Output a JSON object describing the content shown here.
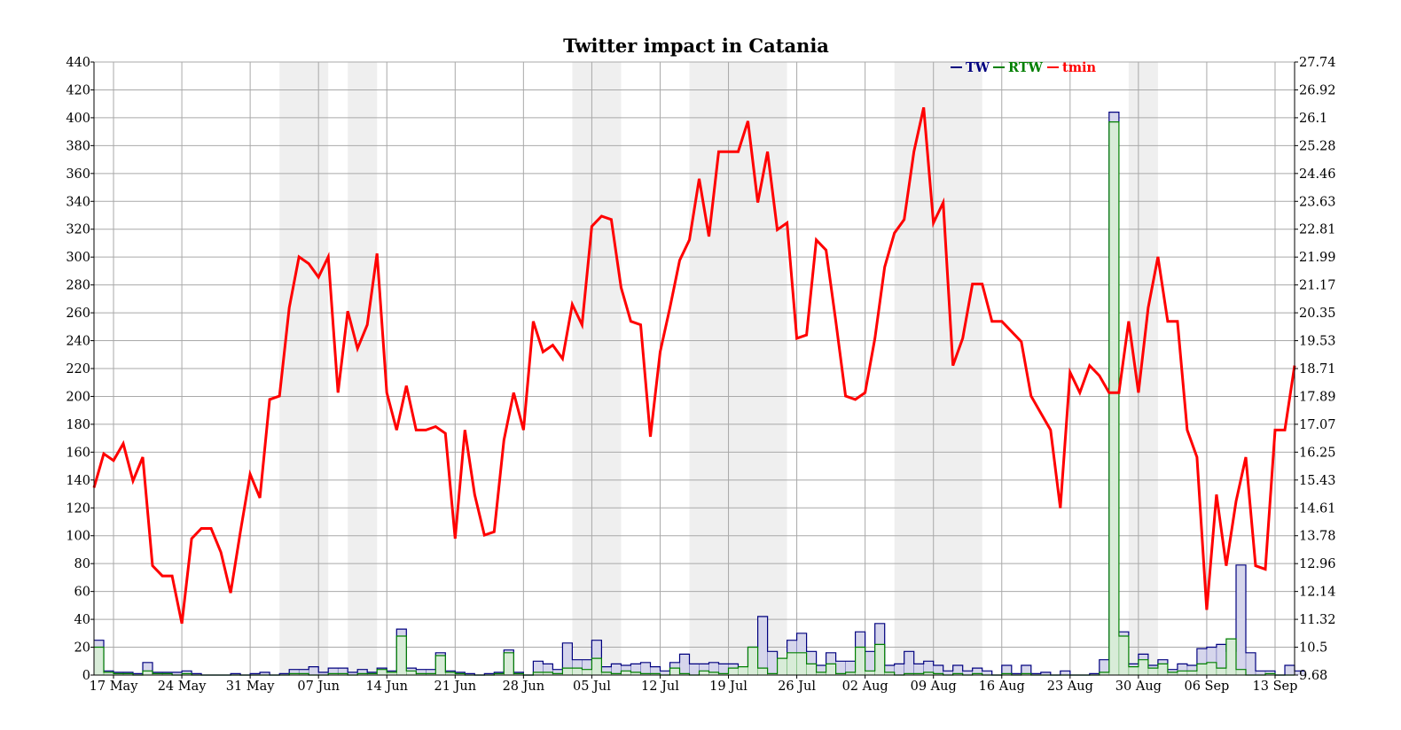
{
  "chart_data": {
    "type": "line",
    "title": "Twitter impact in Catania",
    "x_tick_labels": [
      "17 May",
      "24 May",
      "31 May",
      "07 Jun",
      "14 Jun",
      "21 Jun",
      "28 Jun",
      "05 Jul",
      "12 Jul",
      "19 Jul",
      "26 Jul",
      "02 Aug",
      "09 Aug",
      "16 Aug",
      "23 Aug",
      "30 Aug",
      "06 Sep",
      "13 Sep"
    ],
    "x_tick_day_index": [
      2,
      9,
      16,
      23,
      30,
      37,
      44,
      51,
      58,
      65,
      72,
      79,
      86,
      93,
      100,
      107,
      114,
      121
    ],
    "x_range_days": [
      0,
      123
    ],
    "left_axis": {
      "ylim": [
        0,
        440
      ],
      "ticks": [
        0,
        20,
        40,
        60,
        80,
        100,
        120,
        140,
        160,
        180,
        200,
        220,
        240,
        260,
        280,
        300,
        320,
        340,
        360,
        380,
        400,
        420,
        440
      ]
    },
    "right_axis": {
      "ylim": [
        9.68,
        27.74
      ],
      "ticks": [
        "9.68",
        "10.5",
        "11.32",
        "12.14",
        "12.96",
        "13.78",
        "14.61",
        "15.43",
        "16.25",
        "17.07",
        "17.89",
        "18.71",
        "19.53",
        "20.35",
        "21.17",
        "21.99",
        "22.81",
        "23.63",
        "24.46",
        "25.28",
        "26.1",
        "26.92",
        "27.74"
      ]
    },
    "grid": true,
    "legend": "top-center",
    "shaded_day_ranges": [
      [
        19,
        24
      ],
      [
        26,
        29
      ],
      [
        49,
        54
      ],
      [
        61,
        71
      ],
      [
        82,
        91
      ],
      [
        106,
        109
      ]
    ],
    "series": [
      {
        "name": "TW",
        "axis": "left",
        "style": "step-filled",
        "color": "#00007f",
        "fill": "#d6d6ec",
        "values": [
          25,
          3,
          2,
          2,
          1,
          9,
          2,
          2,
          2,
          3,
          1,
          0,
          0,
          0,
          1,
          0,
          1,
          2,
          0,
          1,
          4,
          4,
          6,
          2,
          5,
          5,
          2,
          4,
          2,
          5,
          3,
          33,
          5,
          4,
          4,
          16,
          3,
          2,
          1,
          0,
          1,
          2,
          18,
          2,
          0,
          10,
          8,
          4,
          23,
          11,
          11,
          25,
          6,
          8,
          7,
          8,
          9,
          6,
          3,
          9,
          15,
          8,
          8,
          9,
          8,
          8,
          4,
          20,
          42,
          17,
          11,
          25,
          30,
          17,
          7,
          16,
          10,
          10,
          31,
          17,
          37,
          7,
          8,
          17,
          8,
          10,
          7,
          3,
          7,
          3,
          5,
          3,
          0,
          7,
          1,
          7,
          1,
          2,
          0,
          3,
          0,
          0,
          1,
          11,
          404,
          31,
          8,
          15,
          7,
          11,
          4,
          8,
          7,
          19,
          20,
          22,
          17,
          79,
          16,
          3,
          3,
          0,
          7,
          3
        ]
      },
      {
        "name": "RTW",
        "axis": "left",
        "style": "step-filled",
        "color": "#007f00",
        "fill": "#d8ecd8",
        "values": [
          20,
          2,
          1,
          1,
          0,
          3,
          1,
          1,
          0,
          1,
          0,
          0,
          0,
          0,
          0,
          0,
          0,
          0,
          0,
          0,
          1,
          1,
          0,
          0,
          1,
          1,
          0,
          1,
          1,
          4,
          2,
          28,
          3,
          1,
          1,
          14,
          2,
          1,
          0,
          0,
          0,
          1,
          16,
          1,
          0,
          2,
          2,
          1,
          5,
          5,
          4,
          12,
          2,
          1,
          3,
          2,
          1,
          1,
          0,
          5,
          1,
          0,
          3,
          2,
          1,
          5,
          6,
          20,
          5,
          1,
          12,
          16,
          16,
          8,
          2,
          8,
          1,
          2,
          20,
          3,
          22,
          2,
          0,
          1,
          1,
          2,
          1,
          0,
          1,
          0,
          1,
          0,
          0,
          1,
          0,
          1,
          0,
          0,
          0,
          0,
          0,
          0,
          0,
          2,
          397,
          28,
          6,
          11,
          5,
          8,
          2,
          3,
          3,
          8,
          9,
          5,
          26,
          4,
          0,
          0,
          1,
          0,
          0
        ]
      },
      {
        "name": "tmin",
        "axis": "right",
        "style": "line",
        "color": "#ff0000",
        "values": [
          15.2,
          16.2,
          16.0,
          16.5,
          15.4,
          16.1,
          12.9,
          12.6,
          12.6,
          11.2,
          13.7,
          14.0,
          14.0,
          13.3,
          12.1,
          13.9,
          15.6,
          14.9,
          17.8,
          17.9,
          20.5,
          22.0,
          21.8,
          21.4,
          22.0,
          18.0,
          20.4,
          19.3,
          20.0,
          22.1,
          18.0,
          16.9,
          18.2,
          16.9,
          16.9,
          17.0,
          16.8,
          13.7,
          16.9,
          15.0,
          13.8,
          13.9,
          16.6,
          18.0,
          16.9,
          20.1,
          19.2,
          19.4,
          19.0,
          20.6,
          20.0,
          22.9,
          23.2,
          23.1,
          21.1,
          20.1,
          20.0,
          16.7,
          19.2,
          20.5,
          21.9,
          22.5,
          24.3,
          22.6,
          25.1,
          25.1,
          25.1,
          26.0,
          23.6,
          25.1,
          22.8,
          23.0,
          19.6,
          19.7,
          22.5,
          22.2,
          20.1,
          17.9,
          17.8,
          18.0,
          19.6,
          21.7,
          22.7,
          23.1,
          25.1,
          26.4,
          23.0,
          23.6,
          18.8,
          19.6,
          21.2,
          21.2,
          20.1,
          20.1,
          19.8,
          19.5,
          17.9,
          17.4,
          16.9,
          14.6,
          18.6,
          18.0,
          18.8,
          18.5,
          18.0,
          18.0,
          20.1,
          18.0,
          20.5,
          22.0,
          20.1,
          20.1,
          16.9,
          16.1,
          11.6,
          15.0,
          12.9,
          14.8,
          16.1,
          12.9,
          12.8,
          16.9,
          16.9,
          18.8
        ]
      }
    ]
  }
}
